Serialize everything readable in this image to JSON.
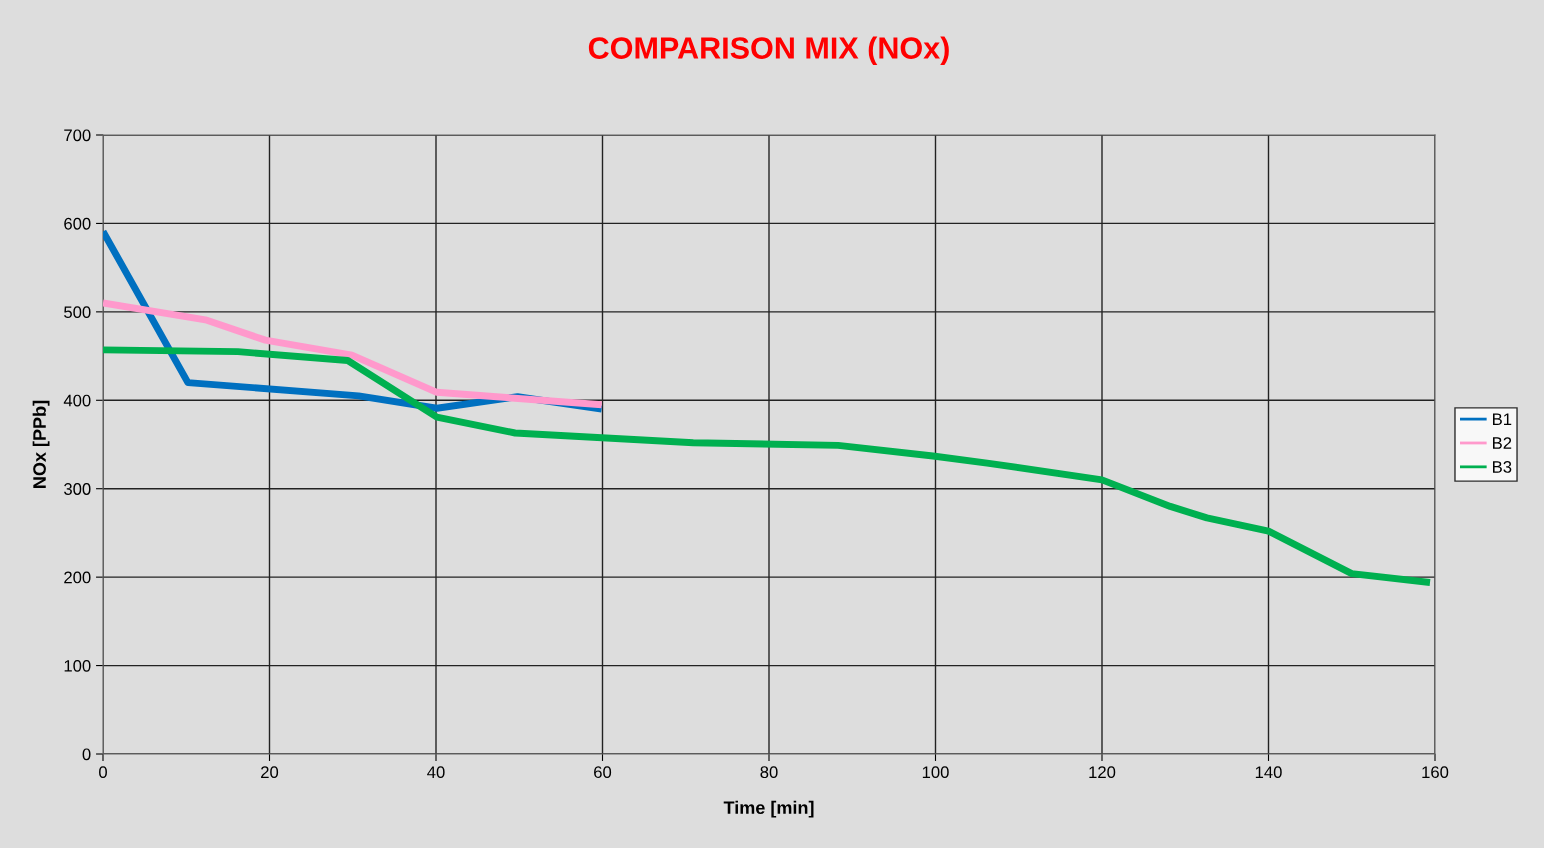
{
  "chart_data": {
    "type": "line",
    "title": "COMPARISON MIX (NOx)",
    "xlabel": "Time [min]",
    "ylabel": "NOx [PPb]",
    "xlim": [
      0,
      160
    ],
    "xticks": [
      0,
      20,
      40,
      60,
      80,
      100,
      120,
      140,
      160
    ],
    "ylim": [
      0,
      700
    ],
    "yticks": [
      0,
      100,
      200,
      300,
      400,
      500,
      600,
      700
    ],
    "grid": true,
    "legend": "right",
    "marker": "none",
    "line_style": "solid",
    "series": [
      {
        "name": "B1",
        "color": "#0070c0",
        "x": [
          0,
          10.2,
          30.7,
          40.1,
          49.8,
          59.9
        ],
        "values": [
          591,
          420,
          405,
          391,
          404,
          390
        ]
      },
      {
        "name": "B2",
        "color": "#ff99cc",
        "x": [
          0,
          12.3,
          19.5,
          29.9,
          40.1,
          59.9
        ],
        "values": [
          510,
          491,
          468,
          451,
          409,
          395
        ]
      },
      {
        "name": "B3",
        "color": "#00b050",
        "x": [
          0,
          16.2,
          29.4,
          40.1,
          49.5,
          70.9,
          88.3,
          99.7,
          106.2,
          120,
          128.2,
          132.6,
          140,
          150,
          159.4
        ],
        "values": [
          457,
          455,
          445,
          381,
          363,
          352,
          349,
          337,
          329,
          310,
          280,
          267,
          252,
          204,
          194
        ]
      }
    ]
  }
}
